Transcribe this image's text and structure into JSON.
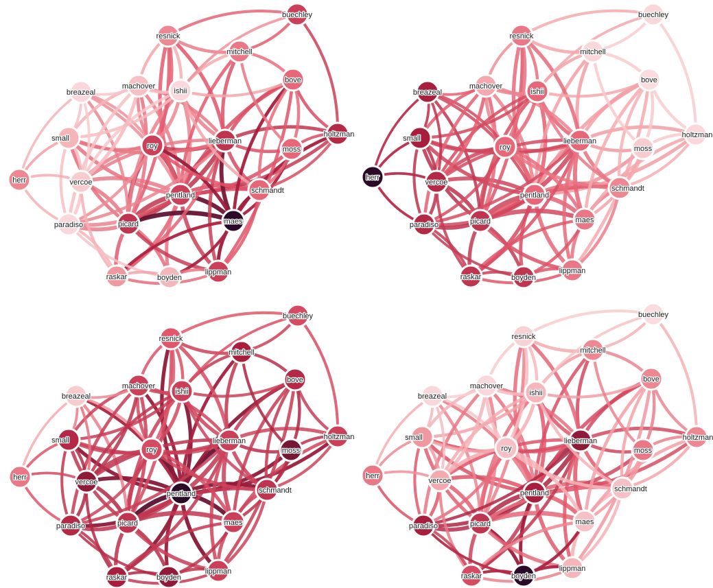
{
  "nodes": [
    "buechley",
    "resnick",
    "mitchell",
    "bove",
    "machover",
    "breazeal",
    "ishii",
    "small",
    "roy",
    "lieberman",
    "moss",
    "holtzman",
    "herr",
    "vercoe",
    "pentland",
    "schmandt",
    "paradiso",
    "picard",
    "maes",
    "raskar",
    "boyden",
    "lippman"
  ],
  "node_labels": {
    "buechley": "buechley",
    "resnick": "resnick",
    "mitchell": "mitchell",
    "bove": "bove",
    "machover": "machover",
    "breazeal": "breazeal",
    "ishii": "ishii",
    "small": "small",
    "roy": "roy",
    "lieberman": "lieberman",
    "moss": "moss",
    "holtzman": "holtzman",
    "herr": "herr",
    "vercoe": "vercoe",
    "pentland": "pentland",
    "schmandt": "schmandt",
    "paradiso": "paradiso",
    "picard": "picard",
    "maes": "maes",
    "raskar": "raskar",
    "boyden": "boyden",
    "lippman": "lippman"
  },
  "edges": [
    [
      "pentland",
      "roy",
      0.75
    ],
    [
      "pentland",
      "lieberman",
      0.75
    ],
    [
      "pentland",
      "picard",
      0.8
    ],
    [
      "pentland",
      "maes",
      0.7
    ],
    [
      "pentland",
      "vercoe",
      0.6
    ],
    [
      "pentland",
      "small",
      0.55
    ],
    [
      "pentland",
      "ishii",
      0.6
    ],
    [
      "pentland",
      "resnick",
      0.55
    ],
    [
      "pentland",
      "machover",
      0.5
    ],
    [
      "pentland",
      "schmandt",
      0.6
    ],
    [
      "pentland",
      "moss",
      0.55
    ],
    [
      "pentland",
      "bove",
      0.55
    ],
    [
      "pentland",
      "lippman",
      0.6
    ],
    [
      "pentland",
      "raskar",
      0.55
    ],
    [
      "pentland",
      "boyden",
      0.5
    ],
    [
      "pentland",
      "paradiso",
      0.55
    ],
    [
      "pentland",
      "holtzman",
      0.5
    ],
    [
      "pentland",
      "mitchell",
      0.45
    ],
    [
      "pentland",
      "breazeal",
      0.4
    ],
    [
      "picard",
      "roy",
      0.7
    ],
    [
      "picard",
      "lieberman",
      0.75
    ],
    [
      "picard",
      "maes",
      0.75
    ],
    [
      "picard",
      "vercoe",
      0.6
    ],
    [
      "picard",
      "paradiso",
      0.6
    ],
    [
      "picard",
      "raskar",
      0.55
    ],
    [
      "picard",
      "boyden",
      0.5
    ],
    [
      "picard",
      "lippman",
      0.55
    ],
    [
      "picard",
      "small",
      0.5
    ],
    [
      "picard",
      "resnick",
      0.45
    ],
    [
      "picard",
      "ishii",
      0.5
    ],
    [
      "picard",
      "machover",
      0.5
    ],
    [
      "picard",
      "schmandt",
      0.5
    ],
    [
      "picard",
      "breazeal",
      0.4
    ],
    [
      "lieberman",
      "roy",
      0.6
    ],
    [
      "lieberman",
      "maes",
      0.65
    ],
    [
      "lieberman",
      "mitchell",
      0.5
    ],
    [
      "lieberman",
      "resnick",
      0.55
    ],
    [
      "lieberman",
      "ishii",
      0.55
    ],
    [
      "lieberman",
      "machover",
      0.45
    ],
    [
      "lieberman",
      "bove",
      0.5
    ],
    [
      "lieberman",
      "moss",
      0.45
    ],
    [
      "lieberman",
      "holtzman",
      0.5
    ],
    [
      "lieberman",
      "schmandt",
      0.55
    ],
    [
      "lieberman",
      "small",
      0.45
    ],
    [
      "lieberman",
      "vercoe",
      0.45
    ],
    [
      "lieberman",
      "raskar",
      0.45
    ],
    [
      "lieberman",
      "lippman",
      0.5
    ],
    [
      "lieberman",
      "paradiso",
      0.4
    ],
    [
      "roy",
      "vercoe",
      0.55
    ],
    [
      "roy",
      "small",
      0.45
    ],
    [
      "roy",
      "ishii",
      0.5
    ],
    [
      "roy",
      "machover",
      0.45
    ],
    [
      "roy",
      "resnick",
      0.45
    ],
    [
      "roy",
      "maes",
      0.5
    ],
    [
      "roy",
      "schmandt",
      0.45
    ],
    [
      "roy",
      "paradiso",
      0.4
    ],
    [
      "roy",
      "breazeal",
      0.35
    ],
    [
      "maes",
      "schmandt",
      0.5
    ],
    [
      "maes",
      "moss",
      0.4
    ],
    [
      "maes",
      "holtzman",
      0.45
    ],
    [
      "maes",
      "lippman",
      0.5
    ],
    [
      "maes",
      "boyden",
      0.4
    ],
    [
      "maes",
      "raskar",
      0.4
    ],
    [
      "maes",
      "bove",
      0.45
    ],
    [
      "resnick",
      "mitchell",
      0.45
    ],
    [
      "resnick",
      "buechley",
      0.35
    ],
    [
      "resnick",
      "machover",
      0.35
    ],
    [
      "resnick",
      "ishii",
      0.4
    ],
    [
      "mitchell",
      "buechley",
      0.35
    ],
    [
      "mitchell",
      "bove",
      0.4
    ],
    [
      "mitchell",
      "ishii",
      0.4
    ],
    [
      "bove",
      "lippman",
      0.45
    ],
    [
      "bove",
      "holtzman",
      0.4
    ],
    [
      "bove",
      "ishii",
      0.35
    ],
    [
      "bove",
      "schmandt",
      0.4
    ],
    [
      "buechley",
      "holtzman",
      0.35
    ],
    [
      "buechley",
      "ishii",
      0.3
    ],
    [
      "ishii",
      "machover",
      0.45
    ],
    [
      "ishii",
      "schmandt",
      0.4
    ],
    [
      "ishii",
      "small",
      0.4
    ],
    [
      "ishii",
      "vercoe",
      0.4
    ],
    [
      "machover",
      "vercoe",
      0.5
    ],
    [
      "machover",
      "small",
      0.4
    ],
    [
      "machover",
      "breazeal",
      0.3
    ],
    [
      "machover",
      "paradiso",
      0.45
    ],
    [
      "breazeal",
      "small",
      0.3
    ],
    [
      "breazeal",
      "herr",
      0.25
    ],
    [
      "breazeal",
      "vercoe",
      0.3
    ],
    [
      "small",
      "herr",
      0.3
    ],
    [
      "small",
      "vercoe",
      0.4
    ],
    [
      "small",
      "paradiso",
      0.35
    ],
    [
      "herr",
      "vercoe",
      0.3
    ],
    [
      "herr",
      "paradiso",
      0.3
    ],
    [
      "vercoe",
      "paradiso",
      0.45
    ],
    [
      "vercoe",
      "raskar",
      0.35
    ],
    [
      "paradiso",
      "raskar",
      0.35
    ],
    [
      "paradiso",
      "boyden",
      0.3
    ],
    [
      "raskar",
      "boyden",
      0.35
    ],
    [
      "raskar",
      "lippman",
      0.35
    ],
    [
      "boyden",
      "lippman",
      0.4
    ],
    [
      "lippman",
      "schmandt",
      0.4
    ],
    [
      "moss",
      "schmandt",
      0.4
    ],
    [
      "moss",
      "bove",
      0.4
    ],
    [
      "moss",
      "holtzman",
      0.35
    ],
    [
      "schmandt",
      "holtzman",
      0.35
    ],
    [
      "moss",
      "mitchell",
      0.35
    ]
  ],
  "panels": [
    {
      "id": "top-left",
      "focus": "maes",
      "node_intensity": {
        "buechley": 0.6,
        "resnick": 0.35,
        "mitchell": 0.4,
        "bove": 0.45,
        "machover": 0.15,
        "breazeal": 0.05,
        "ishii": 0.05,
        "small": 0.2,
        "roy": 0.6,
        "lieberman": 0.65,
        "moss": 0.45,
        "holtzman": 0.7,
        "herr": 0.35,
        "vercoe": 0.1,
        "pentland": 0.6,
        "schmandt": 0.45,
        "paradiso": 0.05,
        "picard": 0.65,
        "maes": 1.0,
        "raskar": 0.3,
        "boyden": 0.2,
        "lippman": 0.6
      }
    },
    {
      "id": "top-right",
      "focus": "herr",
      "node_intensity": {
        "buechley": 0.05,
        "resnick": 0.4,
        "mitchell": 0.05,
        "bove": 0.03,
        "machover": 0.25,
        "breazeal": 0.75,
        "ishii": 0.45,
        "small": 0.75,
        "roy": 0.45,
        "lieberman": 0.45,
        "moss": 0.1,
        "holtzman": 0.05,
        "herr": 1.0,
        "vercoe": 0.7,
        "pentland": 0.45,
        "schmandt": 0.35,
        "paradiso": 0.7,
        "picard": 0.65,
        "maes": 0.4,
        "raskar": 0.65,
        "boyden": 0.65,
        "lippman": 0.4
      }
    },
    {
      "id": "bottom-left",
      "focus": "pentland",
      "node_intensity": {
        "buechley": 0.55,
        "resnick": 0.5,
        "mitchell": 0.75,
        "bove": 0.7,
        "machover": 0.6,
        "breazeal": 0.1,
        "ishii": 0.6,
        "small": 0.7,
        "roy": 0.55,
        "lieberman": 0.6,
        "moss": 0.85,
        "holtzman": 0.6,
        "herr": 0.4,
        "vercoe": 0.8,
        "pentland": 1.0,
        "schmandt": 0.65,
        "paradiso": 0.7,
        "picard": 0.65,
        "maes": 0.6,
        "raskar": 0.75,
        "boyden": 0.8,
        "lippman": 0.6
      }
    },
    {
      "id": "bottom-right",
      "focus": "boyden",
      "node_intensity": {
        "buechley": 0.03,
        "resnick": 0.08,
        "mitchell": 0.35,
        "bove": 0.35,
        "machover": 0.05,
        "breazeal": 0.05,
        "ishii": 0.2,
        "small": 0.3,
        "roy": 0.15,
        "lieberman": 0.8,
        "moss": 0.4,
        "holtzman": 0.35,
        "herr": 0.4,
        "vercoe": 0.25,
        "pentland": 0.75,
        "schmandt": 0.15,
        "paradiso": 0.75,
        "picard": 0.65,
        "maes": 0.15,
        "raskar": 0.55,
        "boyden": 1.0,
        "lippman": 0.2
      }
    }
  ],
  "colors": {
    "pale": "#fbe3e5",
    "light": "#f4a9ae",
    "mid": "#e2566a",
    "dark": "#a81f3d",
    "darkest": "#2b0a27",
    "background": "#ffffff"
  }
}
